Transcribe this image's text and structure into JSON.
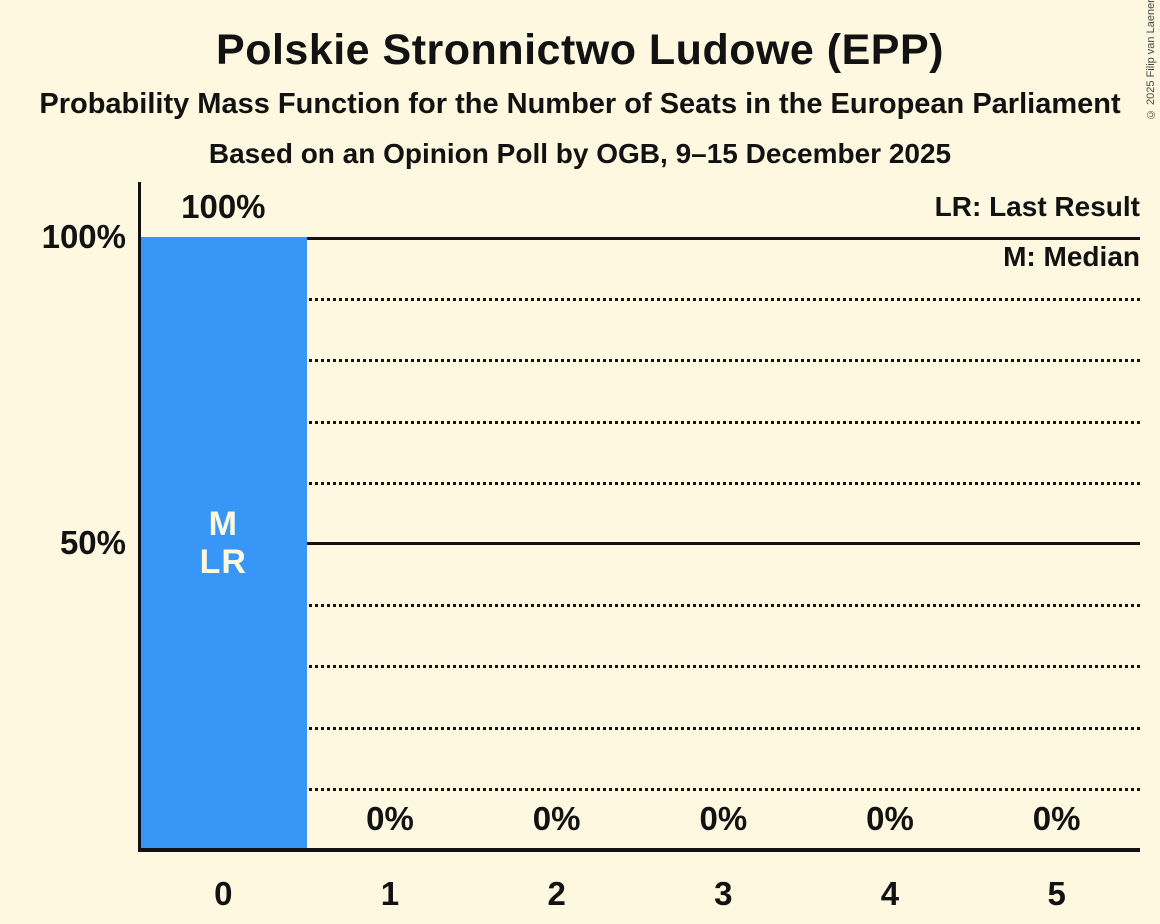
{
  "meta": {
    "copyright": "© 2025 Filip van Laenen"
  },
  "header": {
    "title": "Polskie Stronnictwo Ludowe (EPP)",
    "subtitle": "Probability Mass Function for the Number of Seats in the European Parliament",
    "poll_info": "Based on an Opinion Poll by OGB, 9–15 December 2025"
  },
  "legend": {
    "lr": "LR: Last Result",
    "m": "M: Median"
  },
  "chart_data": {
    "type": "bar",
    "title": "Polskie Stronnictwo Ludowe (EPP)",
    "categories": [
      "0",
      "1",
      "2",
      "3",
      "4",
      "5"
    ],
    "values": [
      100,
      0,
      0,
      0,
      0,
      0
    ],
    "value_labels": [
      "100%",
      "0%",
      "0%",
      "0%",
      "0%",
      "0%"
    ],
    "bar_annotations": [
      [
        "M",
        "LR"
      ],
      [],
      [],
      [],
      [],
      []
    ],
    "xlabel": "",
    "ylabel": "",
    "ylim": [
      0,
      100
    ],
    "yticks": [
      {
        "value": 100,
        "label": "100%"
      },
      {
        "value": 50,
        "label": "50%"
      }
    ],
    "gridlines": {
      "solid_at": [
        100,
        50
      ],
      "dotted_at": [
        90,
        80,
        70,
        60,
        40,
        30,
        20,
        10
      ]
    },
    "grid": true,
    "legend_position": "top-right",
    "colors": {
      "bar": "#3897F6",
      "background": "#FDF8DF",
      "text": "#121212",
      "bar_label_text": "#FDF8DF",
      "gridline": "#15150f",
      "copyright_text": "#4a4a44"
    }
  }
}
